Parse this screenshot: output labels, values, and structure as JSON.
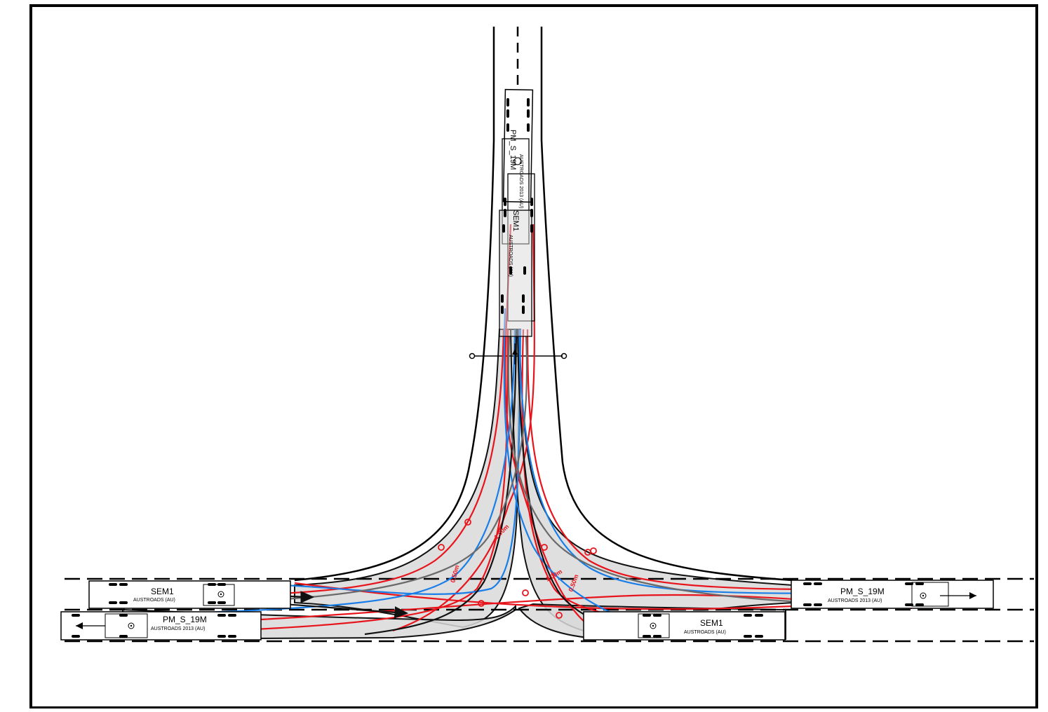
{
  "vehicles": {
    "sem1_left": {
      "name": "SEM1",
      "standard": "AUSTROADS (AU)"
    },
    "pm_left": {
      "name": "PM_S_19M",
      "standard": "AUSTROADS 2013 (AU)"
    },
    "pm_right": {
      "name": "PM_S_19M",
      "standard": "AUSTROADS 2013 (AU)"
    },
    "sem1_right": {
      "name": "SEM1",
      "standard": "AUSTROADS (AU)"
    },
    "pm_top": {
      "name": "PM_S_19M",
      "standard": "AUSTROADS 2013 (AU)"
    },
    "sem1_top": {
      "name": "SEM1",
      "standard": "AUSTROADS (AU)"
    }
  },
  "clearances": [
    "1.00m",
    "0.50m",
    "1.00m",
    "0.50m"
  ],
  "colors": {
    "border": "#000000",
    "swept_fill": "#d9d9d9",
    "path_red": "#e8141c",
    "path_blue": "#1a7ee8",
    "path_black": "#111111",
    "path_grey": "#6a6a6a",
    "marker_red": "#e8141c"
  }
}
